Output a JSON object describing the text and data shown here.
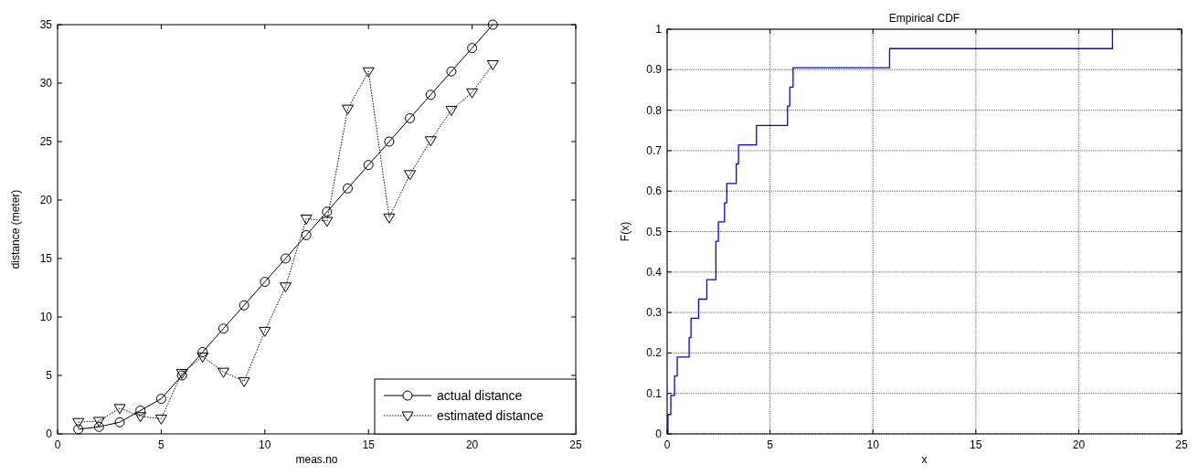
{
  "chart_data": [
    {
      "type": "line",
      "xlabel": "meas.no",
      "ylabel": "distance (meter)",
      "x": [
        1,
        2,
        3,
        4,
        5,
        6,
        7,
        8,
        9,
        10,
        11,
        12,
        13,
        14,
        15,
        16,
        17,
        18,
        19,
        20,
        21
      ],
      "xlim": [
        0,
        25
      ],
      "xticks": [
        0,
        5,
        10,
        15,
        20,
        25
      ],
      "ylim": [
        0,
        35
      ],
      "yticks": [
        0,
        5,
        10,
        15,
        20,
        25,
        30,
        35
      ],
      "grid": false,
      "legend": "bottom right",
      "series": [
        {
          "name": "actual distance",
          "color": "#000000",
          "marker": "circle",
          "line_style": "solid",
          "values": [
            0.4,
            0.6,
            1,
            2,
            3,
            5,
            7,
            9,
            11,
            13,
            15,
            17,
            19,
            21,
            23,
            25,
            27,
            29,
            31,
            33,
            35
          ]
        },
        {
          "name": "estimated distance",
          "color": "#000000",
          "marker": "triangle",
          "line_style": "dotted",
          "values": [
            1.0,
            1.1,
            2.2,
            1.5,
            1.3,
            5.2,
            6.6,
            5.3,
            4.5,
            8.8,
            12.6,
            18.4,
            18.2,
            27.8,
            31.0,
            18.5,
            22.2,
            25.1,
            27.7,
            29.2,
            31.6
          ]
        }
      ]
    },
    {
      "type": "step",
      "title": "Empirical CDF",
      "xlabel": "x",
      "ylabel": "F(x)",
      "xlim": [
        0,
        25
      ],
      "xticks": [
        0,
        5,
        10,
        15,
        20,
        25
      ],
      "ylim": [
        0,
        1
      ],
      "yticks": [
        0,
        0.1,
        0.2,
        0.3,
        0.4,
        0.5,
        0.6,
        0.7,
        0.8,
        0.9,
        1
      ],
      "grid": true,
      "series": [
        {
          "color": "#0000ff",
          "x": [
            0.04,
            0.04,
            0.18,
            0.36,
            0.49,
            1.07,
            1.16,
            1.53,
            1.93,
            2.37,
            2.49,
            2.79,
            2.9,
            3.36,
            3.47,
            4.34,
            5.85,
            5.96,
            6.12,
            10.81,
            21.64
          ],
          "values": [
            0,
            0.048,
            0.095,
            0.143,
            0.19,
            0.238,
            0.286,
            0.333,
            0.381,
            0.476,
            0.524,
            0.571,
            0.619,
            0.667,
            0.714,
            0.762,
            0.81,
            0.857,
            0.905,
            0.952,
            1
          ]
        }
      ]
    }
  ]
}
